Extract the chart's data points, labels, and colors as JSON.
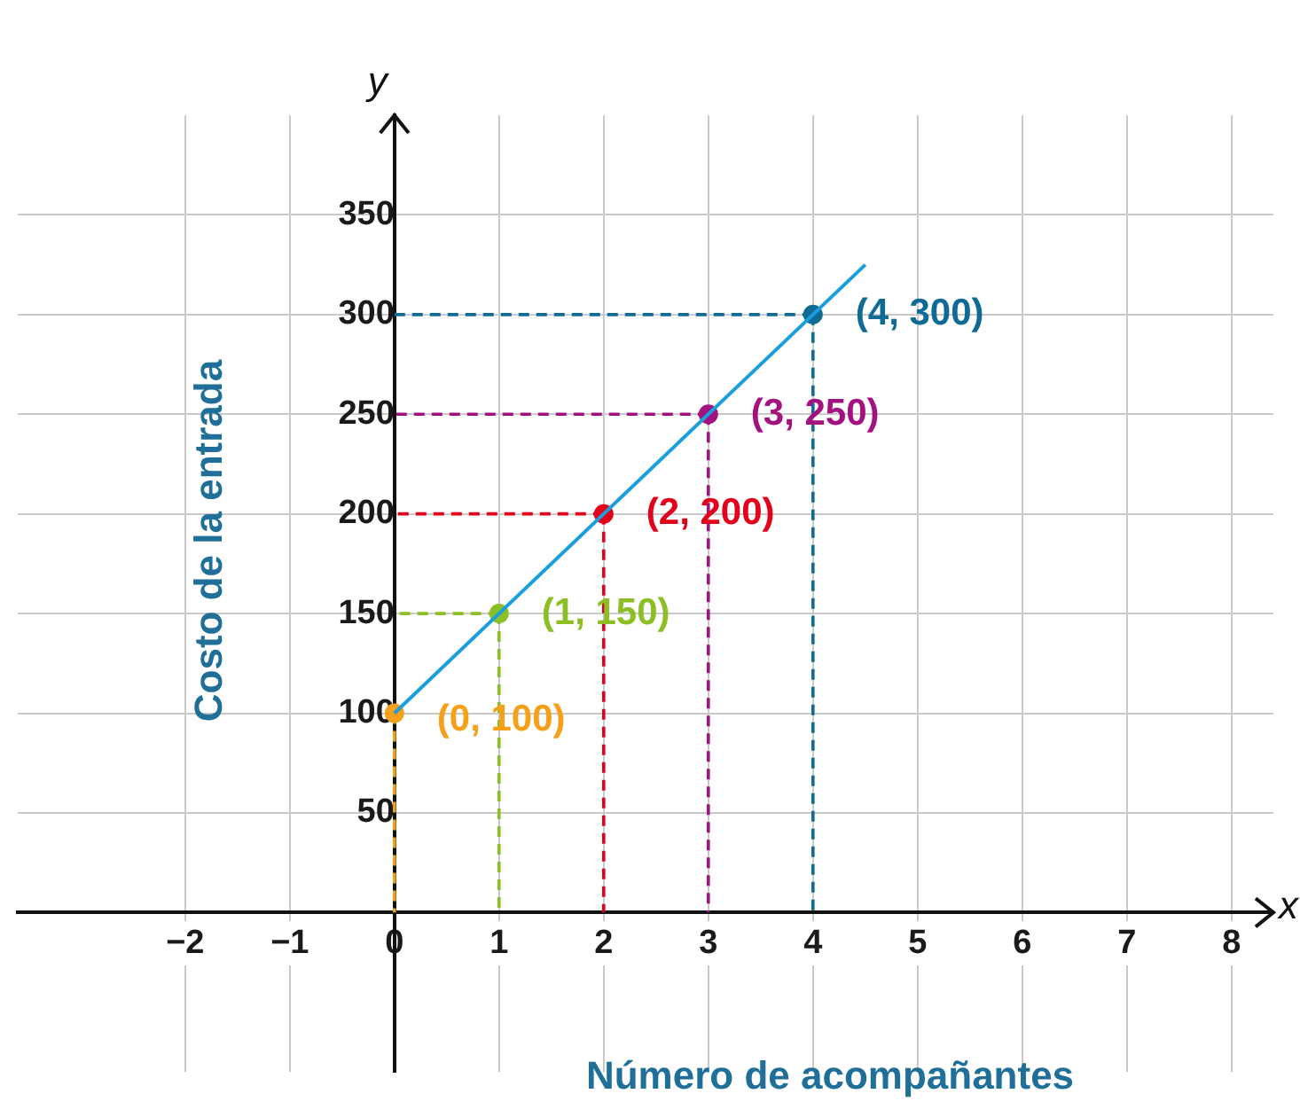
{
  "chart_data": {
    "type": "line",
    "xlabel": "Número de acompañantes",
    "ylabel": "Costo de la entrada",
    "annotations": [
      "x",
      "y"
    ],
    "xlim": [
      -3.6,
      8.4
    ],
    "ylim": [
      -80,
      400
    ],
    "xticks": [
      {
        "value": -2,
        "label": "−2"
      },
      {
        "value": -1,
        "label": "−1"
      },
      0,
      1,
      2,
      3,
      4,
      5,
      6,
      7,
      8
    ],
    "yticks": [
      50,
      100,
      150,
      200,
      250,
      300,
      350
    ],
    "grid": true,
    "legend": false,
    "series": [
      {
        "color": "#1a9fdc",
        "x": [
          0,
          4.5
        ],
        "values": [
          100,
          325
        ]
      },
      {
        "type": "scatter",
        "marker": "circle",
        "colors": [
          "#f5a01a",
          "#8cbf26",
          "#e3001b",
          "#a3127f",
          "#0f6a94"
        ],
        "line_style": "dashed",
        "x": [
          0,
          1,
          2,
          3,
          4
        ],
        "values": [
          100,
          150,
          200,
          250,
          300
        ],
        "value_labels": [
          "(0, 100)",
          "(1, 150)",
          "(2, 200)",
          "(3, 250)",
          "(4, 300)"
        ]
      }
    ]
  }
}
